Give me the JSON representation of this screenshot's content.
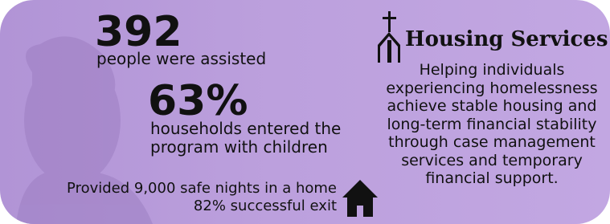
{
  "stats": [
    {
      "value": "392",
      "label": [
        "people were assisted"
      ]
    },
    {
      "value": "63%",
      "label": [
        "households entered the",
        "program with children"
      ]
    }
  ],
  "footer": {
    "lines": [
      "Provided 9,000 safe nights in a home",
      "82% successful exit"
    ]
  },
  "program": {
    "title": "Housing Services",
    "description": [
      "Helping individuals",
      "experiencing homelessness",
      "achieve stable housing and",
      "long-term financial stability",
      "through case management",
      "services and temporary",
      "financial support."
    ]
  }
}
